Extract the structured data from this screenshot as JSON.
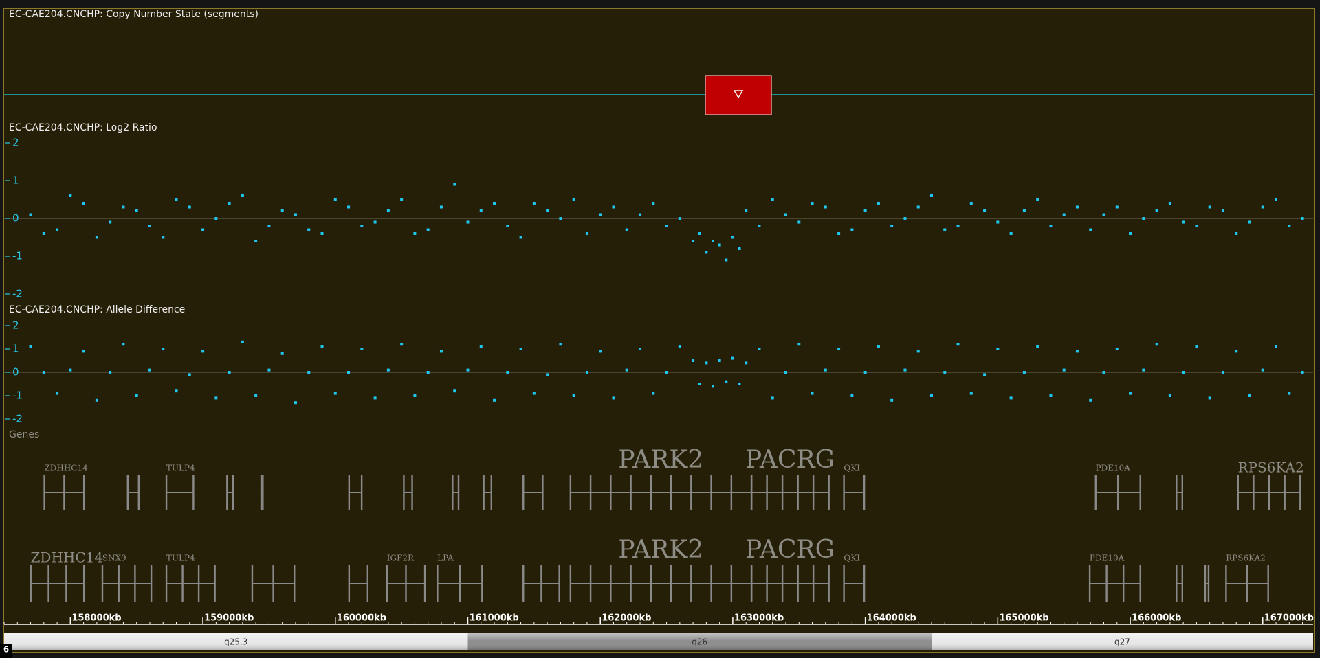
{
  "tracks": [
    {
      "title": "EC-CAE204.CNCHP: Copy Number State (segments)",
      "type": "segments"
    },
    {
      "title": "EC-CAE204.CNCHP: Log2 Ratio",
      "type": "scatter",
      "ylim": [
        -2,
        2
      ],
      "yticks": [
        2,
        1,
        0,
        -1,
        -2
      ],
      "points": [
        [
          157700,
          0.1
        ],
        [
          157800,
          -0.4
        ],
        [
          157900,
          -0.3
        ],
        [
          158000,
          0.6
        ],
        [
          158100,
          0.4
        ],
        [
          158200,
          -0.5
        ],
        [
          158300,
          -0.1
        ],
        [
          158400,
          0.3
        ],
        [
          158500,
          0.2
        ],
        [
          158600,
          -0.2
        ],
        [
          158700,
          -0.5
        ],
        [
          158800,
          0.5
        ],
        [
          158900,
          0.3
        ],
        [
          159000,
          -0.3
        ],
        [
          159100,
          0
        ],
        [
          159200,
          0.4
        ],
        [
          159300,
          0.6
        ],
        [
          159400,
          -0.6
        ],
        [
          159500,
          -0.2
        ],
        [
          159600,
          0.2
        ],
        [
          159700,
          0.1
        ],
        [
          159800,
          -0.3
        ],
        [
          159900,
          -0.4
        ],
        [
          160000,
          0.5
        ],
        [
          160100,
          0.3
        ],
        [
          160200,
          -0.2
        ],
        [
          160300,
          -0.1
        ],
        [
          160400,
          0.2
        ],
        [
          160500,
          0.5
        ],
        [
          160600,
          -0.4
        ],
        [
          160700,
          -0.3
        ],
        [
          160800,
          0.3
        ],
        [
          160900,
          0.9
        ],
        [
          161000,
          -0.1
        ],
        [
          161100,
          0.2
        ],
        [
          161200,
          0.4
        ],
        [
          161300,
          -0.2
        ],
        [
          161400,
          -0.5
        ],
        [
          161500,
          0.4
        ],
        [
          161600,
          0.2
        ],
        [
          161700,
          0
        ],
        [
          161800,
          0.5
        ],
        [
          161900,
          -0.4
        ],
        [
          162000,
          0.1
        ],
        [
          162100,
          0.3
        ],
        [
          162200,
          -0.3
        ],
        [
          162300,
          0.1
        ],
        [
          162400,
          0.4
        ],
        [
          162500,
          -0.2
        ],
        [
          162600,
          0
        ],
        [
          162700,
          -0.6
        ],
        [
          162750,
          -0.4
        ],
        [
          162800,
          -0.9
        ],
        [
          162850,
          -0.6
        ],
        [
          162900,
          -0.7
        ],
        [
          162950,
          -1.1
        ],
        [
          163000,
          -0.5
        ],
        [
          163050,
          -0.8
        ],
        [
          163100,
          0.2
        ],
        [
          163200,
          -0.2
        ],
        [
          163300,
          0.5
        ],
        [
          163400,
          0.1
        ],
        [
          163500,
          -0.1
        ],
        [
          163600,
          0.4
        ],
        [
          163700,
          0.3
        ],
        [
          163800,
          -0.4
        ],
        [
          163900,
          -0.3
        ],
        [
          164000,
          0.2
        ],
        [
          164100,
          0.4
        ],
        [
          164200,
          -0.2
        ],
        [
          164300,
          0
        ],
        [
          164400,
          0.3
        ],
        [
          164500,
          0.6
        ],
        [
          164600,
          -0.3
        ],
        [
          164700,
          -0.2
        ],
        [
          164800,
          0.4
        ],
        [
          164900,
          0.2
        ],
        [
          165000,
          -0.1
        ],
        [
          165100,
          -0.4
        ],
        [
          165200,
          0.2
        ],
        [
          165300,
          0.5
        ],
        [
          165400,
          -0.2
        ],
        [
          165500,
          0.1
        ],
        [
          165600,
          0.3
        ],
        [
          165700,
          -0.3
        ],
        [
          165800,
          0.1
        ],
        [
          165900,
          0.3
        ],
        [
          166000,
          -0.4
        ],
        [
          166100,
          0
        ],
        [
          166200,
          0.2
        ],
        [
          166300,
          0.4
        ],
        [
          166400,
          -0.1
        ],
        [
          166500,
          -0.2
        ],
        [
          166600,
          0.3
        ],
        [
          166700,
          0.2
        ],
        [
          166800,
          -0.4
        ],
        [
          166900,
          -0.1
        ],
        [
          167000,
          0.3
        ],
        [
          167100,
          0.5
        ],
        [
          167200,
          -0.2
        ],
        [
          167300,
          0
        ]
      ]
    },
    {
      "title": "EC-CAE204.CNCHP: Allele Difference",
      "type": "scatter",
      "ylim": [
        -2,
        2
      ],
      "yticks": [
        2,
        1,
        0,
        -1,
        -2
      ],
      "points": [
        [
          157700,
          1.1
        ],
        [
          157800,
          0
        ],
        [
          157900,
          -0.9
        ],
        [
          158000,
          0.1
        ],
        [
          158100,
          0.9
        ],
        [
          158200,
          -1.2
        ],
        [
          158300,
          0
        ],
        [
          158400,
          1.2
        ],
        [
          158500,
          -1
        ],
        [
          158600,
          0.1
        ],
        [
          158700,
          1
        ],
        [
          158800,
          -0.8
        ],
        [
          158900,
          -0.1
        ],
        [
          159000,
          0.9
        ],
        [
          159100,
          -1.1
        ],
        [
          159200,
          0
        ],
        [
          159300,
          1.3
        ],
        [
          159400,
          -1
        ],
        [
          159500,
          0.1
        ],
        [
          159600,
          0.8
        ],
        [
          159700,
          -1.3
        ],
        [
          159800,
          0
        ],
        [
          159900,
          1.1
        ],
        [
          160000,
          -0.9
        ],
        [
          160100,
          0
        ],
        [
          160200,
          1
        ],
        [
          160300,
          -1.1
        ],
        [
          160400,
          0.1
        ],
        [
          160500,
          1.2
        ],
        [
          160600,
          -1
        ],
        [
          160700,
          0
        ],
        [
          160800,
          0.9
        ],
        [
          160900,
          -0.8
        ],
        [
          161000,
          0.1
        ],
        [
          161100,
          1.1
        ],
        [
          161200,
          -1.2
        ],
        [
          161300,
          0
        ],
        [
          161400,
          1
        ],
        [
          161500,
          -0.9
        ],
        [
          161600,
          -0.1
        ],
        [
          161700,
          1.2
        ],
        [
          161800,
          -1
        ],
        [
          161900,
          0
        ],
        [
          162000,
          0.9
        ],
        [
          162100,
          -1.1
        ],
        [
          162200,
          0.1
        ],
        [
          162300,
          1
        ],
        [
          162400,
          -0.9
        ],
        [
          162500,
          0
        ],
        [
          162600,
          1.1
        ],
        [
          162700,
          0.5
        ],
        [
          162750,
          -0.5
        ],
        [
          162800,
          0.4
        ],
        [
          162850,
          -0.6
        ],
        [
          162900,
          0.5
        ],
        [
          162950,
          -0.4
        ],
        [
          163000,
          0.6
        ],
        [
          163050,
          -0.5
        ],
        [
          163100,
          0.4
        ],
        [
          163200,
          1
        ],
        [
          163300,
          -1.1
        ],
        [
          163400,
          0
        ],
        [
          163500,
          1.2
        ],
        [
          163600,
          -0.9
        ],
        [
          163700,
          0.1
        ],
        [
          163800,
          1
        ],
        [
          163900,
          -1
        ],
        [
          164000,
          0
        ],
        [
          164100,
          1.1
        ],
        [
          164200,
          -1.2
        ],
        [
          164300,
          0.1
        ],
        [
          164400,
          0.9
        ],
        [
          164500,
          -1
        ],
        [
          164600,
          0
        ],
        [
          164700,
          1.2
        ],
        [
          164800,
          -0.9
        ],
        [
          164900,
          -0.1
        ],
        [
          165000,
          1
        ],
        [
          165100,
          -1.1
        ],
        [
          165200,
          0
        ],
        [
          165300,
          1.1
        ],
        [
          165400,
          -1
        ],
        [
          165500,
          0.1
        ],
        [
          165600,
          0.9
        ],
        [
          165700,
          -1.2
        ],
        [
          165800,
          0
        ],
        [
          165900,
          1
        ],
        [
          166000,
          -0.9
        ],
        [
          166100,
          0.1
        ],
        [
          166200,
          1.2
        ],
        [
          166300,
          -1
        ],
        [
          166400,
          0
        ],
        [
          166500,
          1.1
        ],
        [
          166600,
          -1.1
        ],
        [
          166700,
          0
        ],
        [
          166800,
          0.9
        ],
        [
          166900,
          -1
        ],
        [
          167000,
          0.1
        ],
        [
          167100,
          1.1
        ],
        [
          167200,
          -0.9
        ],
        [
          167300,
          0
        ]
      ]
    },
    {
      "title": "Genes",
      "type": "genes",
      "rows": [
        [
          {
            "label": "ZDHHC14",
            "start": 157803,
            "end": 158102
          },
          {
            "start": 158432,
            "end": 158515
          },
          {
            "label": "TULP4",
            "start": 158724,
            "end": 158928
          },
          {
            "start": 159182,
            "end": 159226
          },
          {
            "start": 159440,
            "end": 159452
          },
          {
            "start": 160103,
            "end": 160198
          },
          {
            "start": 160516,
            "end": 160579
          },
          {
            "start": 160884,
            "end": 160929
          },
          {
            "start": 161119,
            "end": 161177
          },
          {
            "start": 161418,
            "end": 161564
          },
          {
            "label": "PARK2",
            "start": 161774,
            "end": 163140
          },
          {
            "label": "PACRG",
            "start": 163140,
            "end": 163724
          },
          {
            "label": "QKI",
            "start": 163838,
            "end": 163991
          },
          {
            "label": "PDE10A",
            "start": 165738,
            "end": 166075
          },
          {
            "start": 166348,
            "end": 166392
          },
          {
            "label": "RPS6KA2",
            "start": 166812,
            "end": 167282
          }
        ],
        [
          {
            "label": "ZDHHC14",
            "start": 157700,
            "end": 158102
          },
          {
            "label": "SNX9",
            "start": 158241,
            "end": 158610
          },
          {
            "label": "TULP4",
            "start": 158724,
            "end": 159090
          },
          {
            "start": 159372,
            "end": 159690
          },
          {
            "start": 160103,
            "end": 160243
          },
          {
            "label": "IGF2R",
            "start": 160389,
            "end": 160675
          },
          {
            "label": "LPA",
            "start": 160770,
            "end": 161107
          },
          {
            "start": 161418,
            "end": 161690
          },
          {
            "label": "PARK2",
            "start": 161774,
            "end": 163140
          },
          {
            "label": "PACRG",
            "start": 163140,
            "end": 163724
          },
          {
            "label": "QKI",
            "start": 163838,
            "end": 163991
          },
          {
            "label": "PDE10A",
            "start": 165693,
            "end": 166075
          },
          {
            "start": 166348,
            "end": 166392
          },
          {
            "start": 166564,
            "end": 166590
          },
          {
            "label": "RPS6KA2",
            "start": 166722,
            "end": 167040
          }
        ]
      ]
    }
  ],
  "ruler": {
    "xlim": [
      157500,
      167380
    ],
    "ticks": [
      {
        "value": 158000,
        "label": "158000kb"
      },
      {
        "value": 159000,
        "label": "159000kb"
      },
      {
        "value": 160000,
        "label": "160000kb"
      },
      {
        "value": 161000,
        "label": "161000kb"
      },
      {
        "value": 162000,
        "label": "162000kb"
      },
      {
        "value": 163000,
        "label": "163000kb"
      },
      {
        "value": 164000,
        "label": "164000kb"
      },
      {
        "value": 165000,
        "label": "165000kb"
      },
      {
        "value": 166000,
        "label": "166000kb"
      },
      {
        "value": 167000,
        "label": "167000kb"
      }
    ]
  },
  "cytobands": [
    {
      "name": "q25.3",
      "start": 157500,
      "end": 161000,
      "color": "#e8e8e8"
    },
    {
      "name": "q26",
      "start": 161000,
      "end": 164500,
      "color": "#8c8c8c"
    },
    {
      "name": "q27",
      "start": 164500,
      "end": 167380,
      "color": "#e8e8e8"
    }
  ],
  "chromosome": "6"
}
